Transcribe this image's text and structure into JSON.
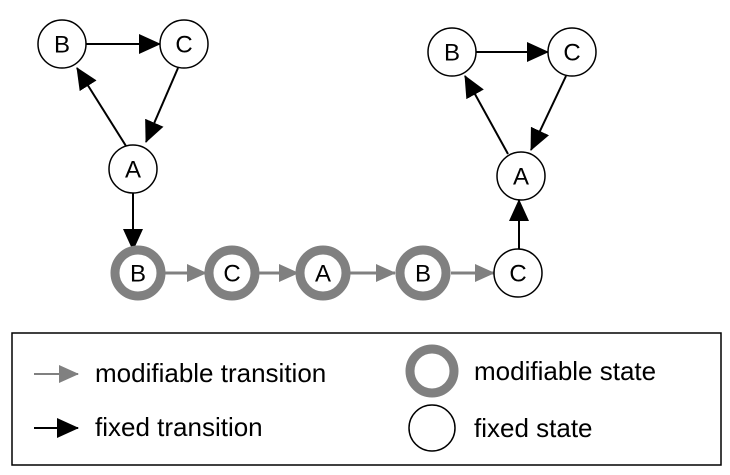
{
  "diagram": {
    "top_left_cycle": {
      "b": "B",
      "c": "C",
      "a": "A"
    },
    "chain": [
      "B",
      "C",
      "A",
      "B",
      "C"
    ],
    "top_right_cycle": {
      "b": "B",
      "c": "C",
      "a": "A"
    }
  },
  "legend": {
    "modifiable_transition": "modifiable transition",
    "fixed_transition": "fixed transition",
    "modifiable_state": "modifiable state",
    "fixed_state": "fixed state"
  },
  "colors": {
    "fixed": "#000000",
    "modifiable": "#808080"
  }
}
